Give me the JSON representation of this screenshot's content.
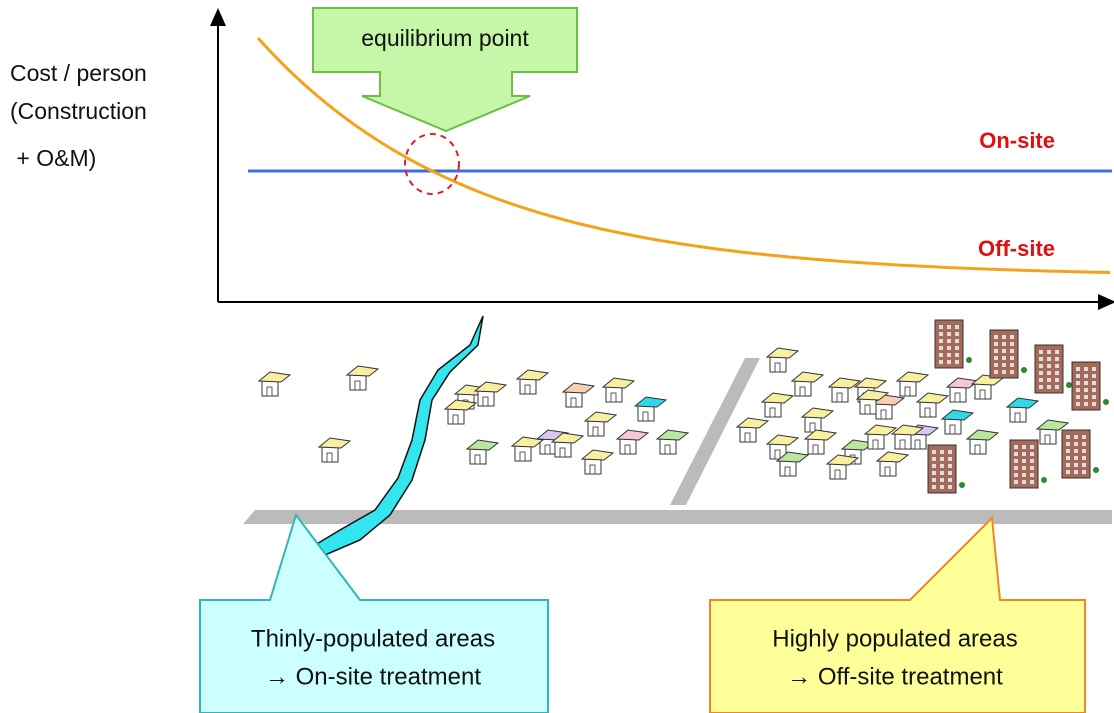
{
  "axis_label": {
    "lines": [
      "Cost / person",
      "(Construction",
      " + O&M)"
    ]
  },
  "equilibrium_label": "equilibrium point",
  "curves": {
    "on_site": "On-site",
    "off_site": "Off-site"
  },
  "callouts": [
    {
      "lines": [
        "Thinly-populated areas",
        "→ On-site treatment"
      ]
    },
    {
      "lines": [
        "Highly populated areas",
        "→ Off-site treatment"
      ]
    }
  ]
}
